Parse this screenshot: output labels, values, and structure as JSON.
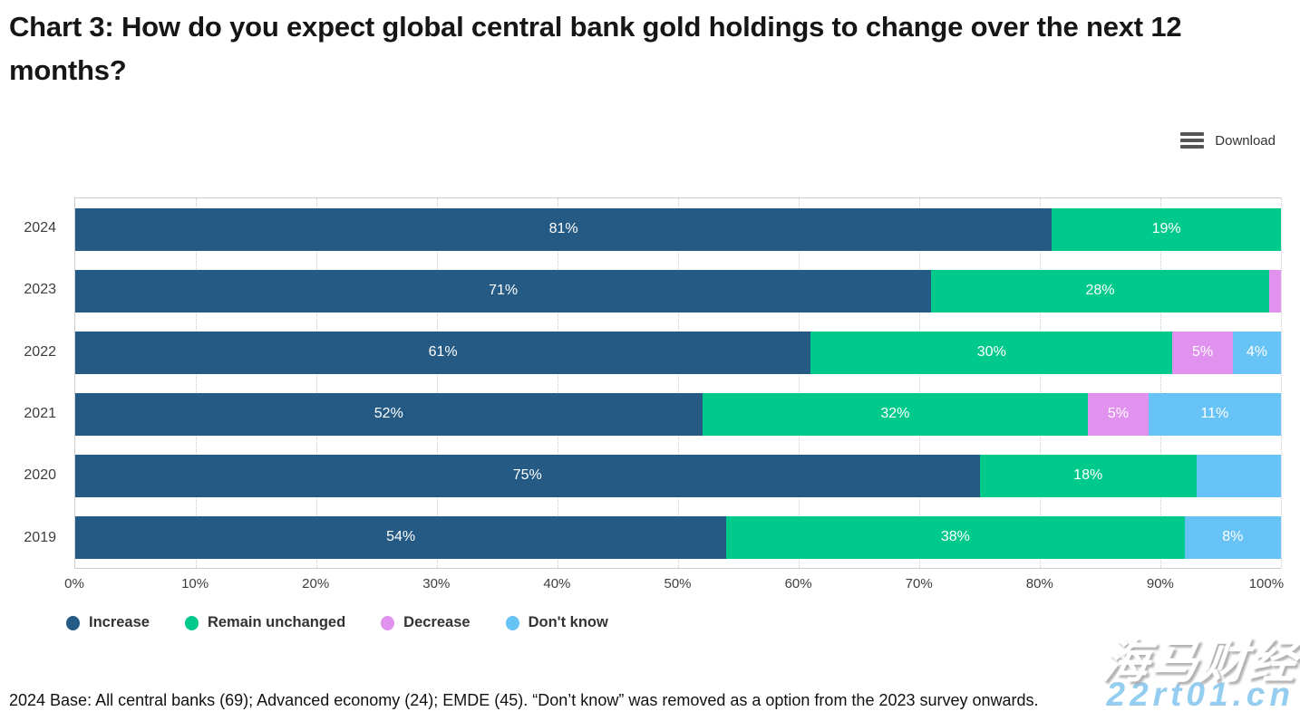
{
  "title": "Chart 3: How do you expect global central bank gold holdings to change over the next 12 months?",
  "toolbar": {
    "download_label": "Download",
    "menu_icon": "hamburger-icon"
  },
  "chart_data": {
    "type": "bar",
    "stacked": true,
    "orientation": "horizontal",
    "title": "Chart 3: How do you expect global central bank gold holdings to change over the next 12 months?",
    "categories": [
      "2024",
      "2023",
      "2022",
      "2021",
      "2020",
      "2019"
    ],
    "series": [
      {
        "name": "Increase",
        "color": "#245a84",
        "values": [
          81,
          71,
          61,
          52,
          75,
          54
        ],
        "labels": [
          "81%",
          "71%",
          "61%",
          "52%",
          "75%",
          "54%"
        ]
      },
      {
        "name": "Remain unchanged",
        "color": "#00c98c",
        "values": [
          19,
          28,
          30,
          32,
          18,
          38
        ],
        "labels": [
          "19%",
          "28%",
          "30%",
          "32%",
          "18%",
          "38%"
        ]
      },
      {
        "name": "Decrease",
        "color": "#e191ee",
        "values": [
          0,
          1,
          5,
          5,
          0,
          0
        ],
        "labels": [
          "",
          "",
          "5%",
          "5%",
          "",
          ""
        ]
      },
      {
        "name": "Don't know",
        "color": "#67c3f5",
        "values": [
          0,
          0,
          4,
          11,
          7,
          8
        ],
        "labels": [
          "",
          "",
          "4%",
          "11%",
          "",
          "8%"
        ]
      }
    ],
    "x_ticks": [
      "0%",
      "10%",
      "20%",
      "30%",
      "40%",
      "50%",
      "60%",
      "70%",
      "80%",
      "90%",
      "100%"
    ],
    "xlim": [
      0,
      100
    ],
    "grid": "vertical-dotted",
    "legend_position": "bottom-left",
    "bar_label_color": "#ffffff",
    "axis_text_color": "#3d3d3d"
  },
  "footer": "2024 Base: All central banks (69); Advanced economy (24); EMDE (45). “Don’t know” was removed as a option from the 2023 survey onwards.",
  "watermark": {
    "line1": "海马财经",
    "line2": "22rt01.cn"
  }
}
